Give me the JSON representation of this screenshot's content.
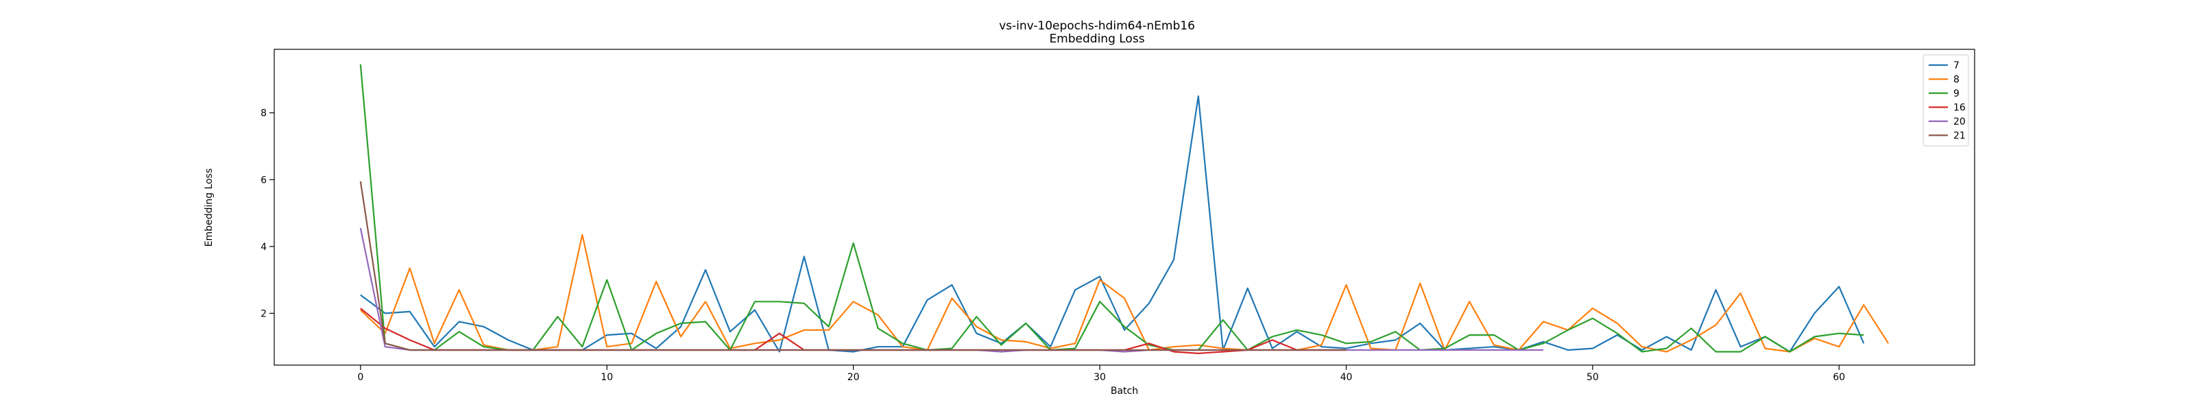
{
  "chart_data": {
    "type": "line",
    "title": "vs-inv-10epochs-hdim64-nEmb16",
    "subtitle": "Embedding Loss",
    "xlabel": "Batch",
    "ylabel": "Embedding Loss",
    "xlim": [
      -3.5,
      65.5
    ],
    "ylim": [
      0.45,
      9.9
    ],
    "xticks": [
      0,
      10,
      20,
      30,
      40,
      50,
      60
    ],
    "yticks": [
      2,
      4,
      6,
      8
    ],
    "grid": false,
    "legend_position": "top-right",
    "series": [
      {
        "name": "7",
        "color": "#1f77b4",
        "values": [
          2.55,
          2.0,
          2.05,
          1.0,
          1.75,
          1.6,
          1.2,
          0.9,
          0.9,
          0.9,
          1.35,
          1.4,
          0.95,
          1.6,
          3.3,
          1.45,
          2.1,
          0.85,
          3.7,
          0.9,
          0.85,
          1.0,
          1.0,
          2.4,
          2.85,
          1.4,
          1.1,
          1.7,
          1.0,
          2.7,
          3.1,
          1.5,
          2.3,
          3.6,
          8.5,
          0.9,
          2.75,
          0.95,
          1.45,
          1.0,
          0.95,
          1.1,
          1.2,
          1.7,
          0.9,
          0.95,
          1.0,
          0.9,
          1.15,
          0.9,
          0.95,
          1.35,
          0.9,
          1.3,
          0.9,
          2.7,
          1.0,
          1.3,
          0.85,
          2.0,
          2.8,
          1.1
        ]
      },
      {
        "name": "8",
        "color": "#ff7f0e",
        "values": [
          2.1,
          1.4,
          3.35,
          1.1,
          2.7,
          1.05,
          0.9,
          0.9,
          1.0,
          4.35,
          1.0,
          1.1,
          2.95,
          1.3,
          2.35,
          0.95,
          1.1,
          1.2,
          1.5,
          1.5,
          2.35,
          1.95,
          1.0,
          0.9,
          2.45,
          1.6,
          1.2,
          1.15,
          0.95,
          1.1,
          3.0,
          2.45,
          0.9,
          1.0,
          1.05,
          0.95,
          0.9,
          0.9,
          0.9,
          1.05,
          2.85,
          0.95,
          0.9,
          2.9,
          0.9,
          2.35,
          1.05,
          0.9,
          1.75,
          1.5,
          2.15,
          1.7,
          1.0,
          0.85,
          1.2,
          1.65,
          2.6,
          0.95,
          0.85,
          1.25,
          1.0,
          2.25,
          1.1
        ]
      },
      {
        "name": "9",
        "color": "#2ca02c",
        "values": [
          9.45,
          1.1,
          0.9,
          0.9,
          1.45,
          1.0,
          0.9,
          0.9,
          1.9,
          1.0,
          3.0,
          0.9,
          1.4,
          1.7,
          1.75,
          0.9,
          2.35,
          2.35,
          2.3,
          1.6,
          4.1,
          1.55,
          1.1,
          0.9,
          0.95,
          1.9,
          1.05,
          1.7,
          0.9,
          0.95,
          2.35,
          1.6,
          1.05,
          0.9,
          0.9,
          1.8,
          0.9,
          1.3,
          1.5,
          1.35,
          1.1,
          1.15,
          1.45,
          0.9,
          0.95,
          1.35,
          1.35,
          0.9,
          1.1,
          1.5,
          1.85,
          1.4,
          0.85,
          0.95,
          1.55,
          0.85,
          0.85,
          1.3,
          0.85,
          1.3,
          1.4,
          1.35
        ]
      },
      {
        "name": "16",
        "color": "#d62728",
        "values": [
          2.15,
          1.55,
          1.2,
          0.9,
          0.9,
          0.9,
          0.9,
          0.9,
          0.9,
          0.9,
          0.9,
          0.9,
          0.9,
          0.9,
          0.9,
          0.9,
          0.9,
          1.4,
          0.9,
          0.9,
          0.9,
          0.9,
          0.9,
          0.9,
          0.9,
          0.9,
          0.9,
          0.9,
          0.9,
          0.9,
          0.9,
          0.9,
          1.1,
          0.85,
          0.8,
          0.85,
          0.9,
          1.2,
          0.9,
          0.9,
          0.9
        ]
      },
      {
        "name": "20",
        "color": "#9467bd",
        "values": [
          4.55,
          1.0,
          0.9,
          0.9,
          0.9,
          0.9,
          0.9,
          0.9,
          0.9,
          0.9,
          0.9,
          0.9,
          0.9,
          0.9,
          0.9,
          0.9,
          0.9,
          0.9,
          0.9,
          0.9,
          0.9,
          0.9,
          0.9,
          0.9,
          0.9,
          0.9,
          0.85,
          0.9,
          0.9,
          0.9,
          0.9,
          0.85,
          0.9,
          0.9,
          0.9,
          0.9,
          0.9,
          0.9,
          0.9,
          0.9,
          0.9,
          0.9,
          0.9,
          0.9,
          0.9,
          0.9,
          0.9,
          0.9,
          0.9
        ]
      },
      {
        "name": "21",
        "color": "#8c564b",
        "values": [
          5.95,
          1.1,
          0.9,
          0.9,
          0.9,
          0.9,
          0.9,
          0.9,
          0.9,
          0.9,
          0.9,
          0.9,
          0.9,
          0.9,
          0.9,
          0.9,
          0.9,
          0.9,
          0.9,
          0.9,
          0.9,
          0.9,
          0.9,
          0.9,
          0.9,
          0.9,
          0.9,
          0.9,
          0.9,
          0.9,
          0.9,
          0.9,
          0.9,
          0.9,
          0.9,
          0.9,
          0.9,
          0.9,
          0.9,
          0.9,
          0.9
        ]
      }
    ]
  }
}
